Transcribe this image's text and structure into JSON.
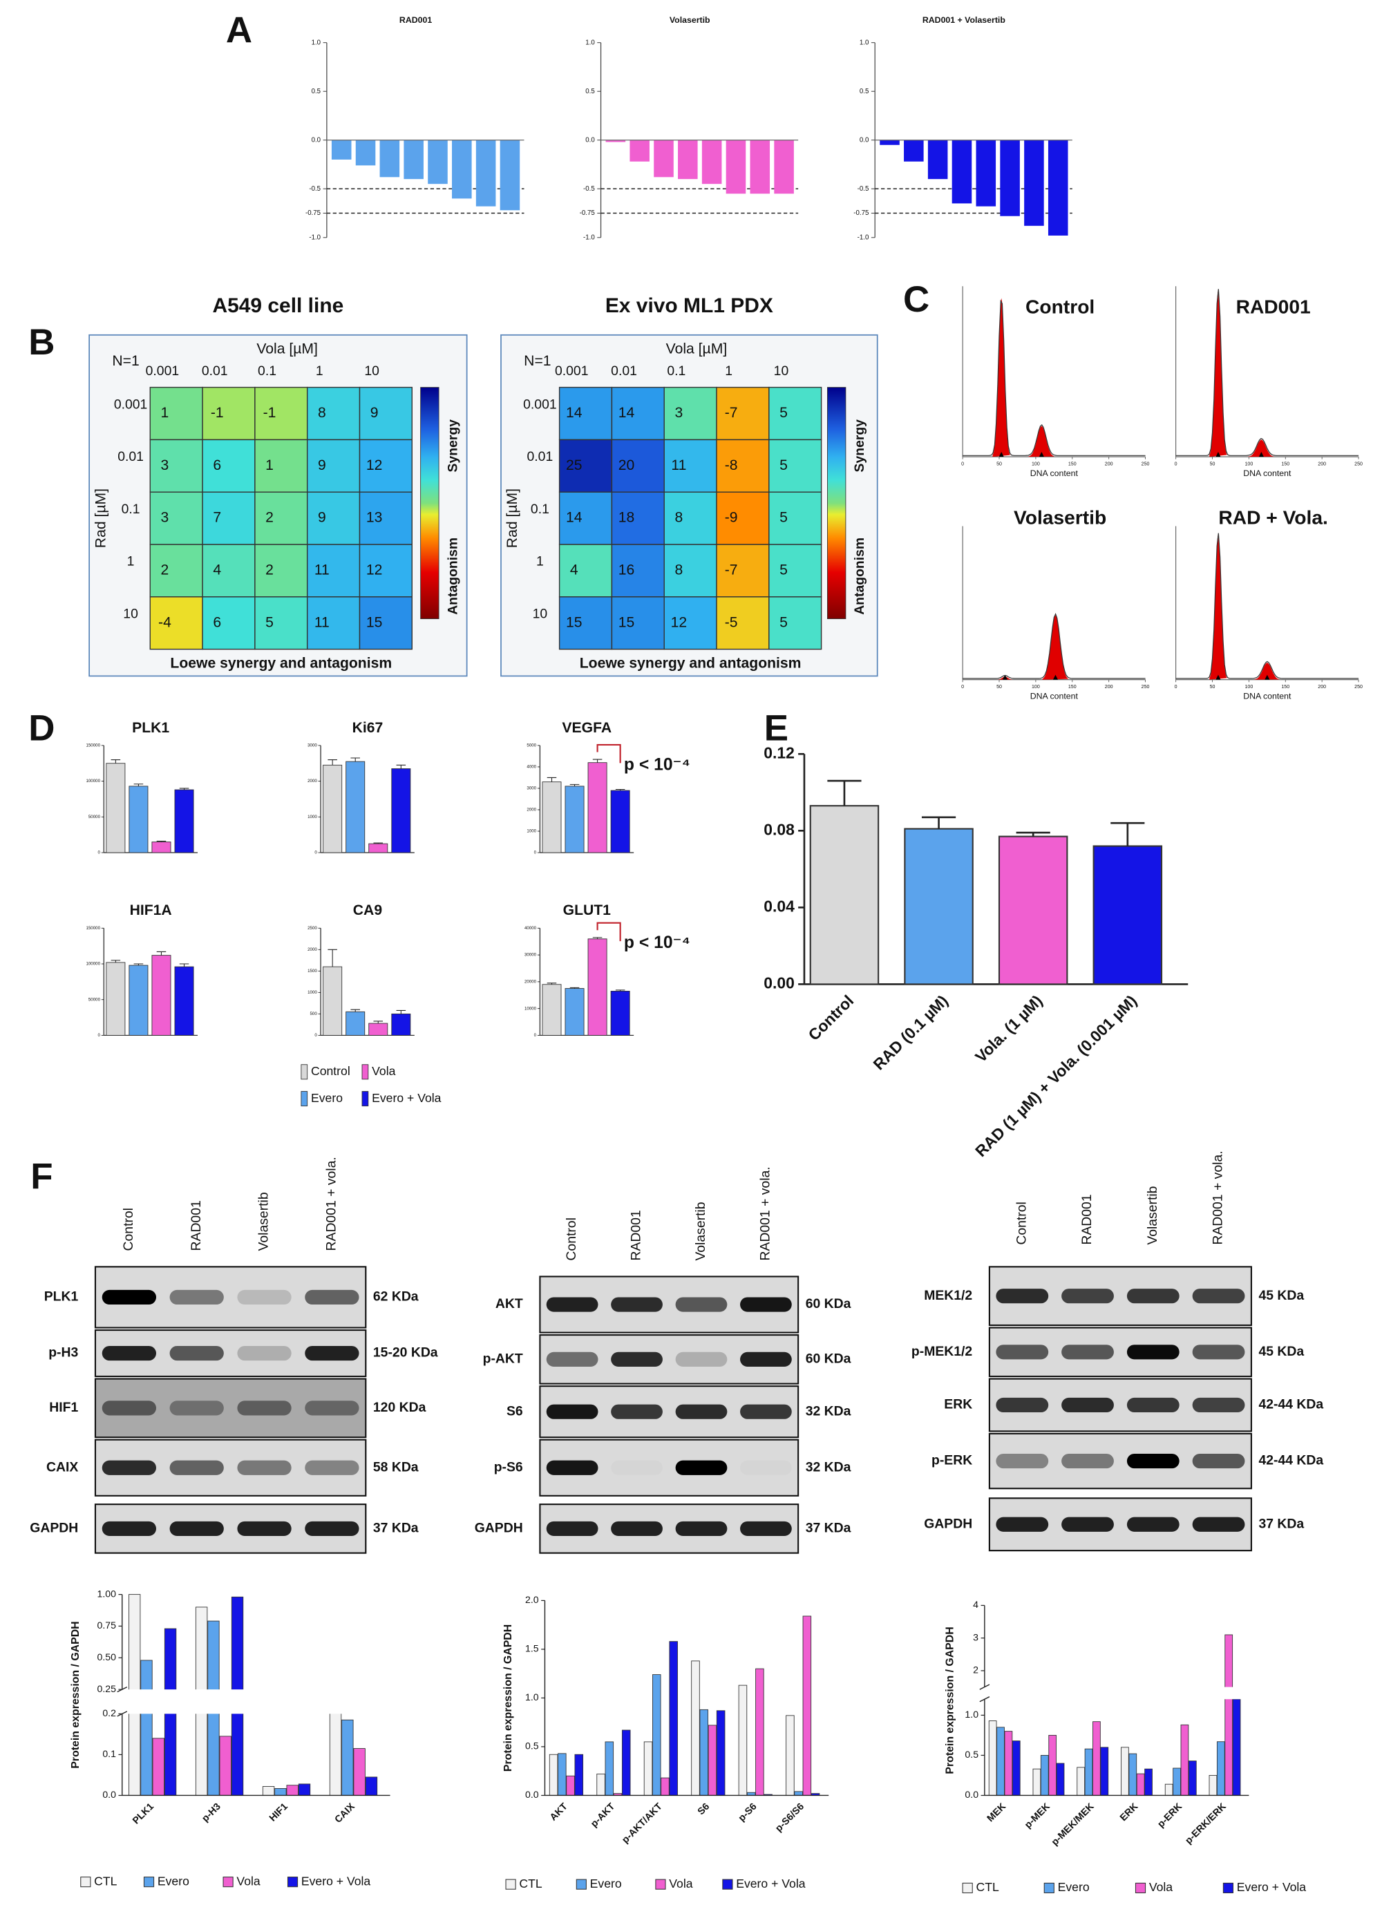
{
  "panel_labels": [
    "A",
    "B",
    "C",
    "D",
    "E",
    "F"
  ],
  "panel_d_legend": {
    "names": [
      "Control",
      "Evero",
      "Vola",
      "Evero + Vola"
    ],
    "colors": [
      "#d9d9d9",
      "#5ba3ec",
      "#f05fd0",
      "#1414e6"
    ]
  },
  "chart_data": [
    {
      "type": "waterfall",
      "title": "RAD001",
      "values": [
        -0.2,
        -0.26,
        -0.38,
        -0.4,
        -0.45,
        -0.6,
        -0.68,
        -0.72
      ],
      "color": "#5ba3ec",
      "ylim": [
        -1,
        1
      ],
      "yticks": [
        {
          "value": 1,
          "label": "1.0"
        },
        0.5,
        {
          "value": 0,
          "label": "0.0"
        },
        -0.5,
        -0.75,
        {
          "value": -1,
          "label": "-1.0"
        }
      ],
      "dashed_lines": [
        -0.5,
        -0.75
      ]
    },
    {
      "type": "waterfall",
      "title": "Volasertib",
      "values": [
        -0.02,
        -0.22,
        -0.38,
        -0.4,
        -0.45,
        -0.55,
        -0.55,
        -0.55
      ],
      "color": "#f05fd0",
      "ylim": [
        -1,
        1
      ],
      "yticks": [
        {
          "value": 1,
          "label": "1.0"
        },
        0.5,
        {
          "value": 0,
          "label": "0.0"
        },
        -0.5,
        -0.75,
        {
          "value": -1,
          "label": "-1.0"
        }
      ],
      "dashed_lines": [
        -0.5,
        -0.75
      ]
    },
    {
      "type": "waterfall",
      "title": "RAD001 + Volasertib",
      "values": [
        -0.05,
        -0.22,
        -0.4,
        -0.65,
        -0.68,
        -0.78,
        -0.88,
        -0.98
      ],
      "color": "#1414e6",
      "ylim": [
        -1,
        1
      ],
      "yticks": [
        {
          "value": 1,
          "label": "1.0"
        },
        0.5,
        {
          "value": 0,
          "label": "0.0"
        },
        -0.5,
        -0.75,
        {
          "value": -1,
          "label": "-1.0"
        }
      ],
      "dashed_lines": [
        -0.5,
        -0.75
      ]
    },
    {
      "type": "heatmap",
      "title": "A549 cell line",
      "note": "N=1",
      "x_label": "Vola [µM]",
      "y_label": "Rad [µM]",
      "x_categories": [
        "0.001",
        "0.01",
        "0.1",
        "1",
        "10"
      ],
      "y_categories": [
        "0.001",
        "0.01",
        "0.1",
        "1",
        "10"
      ],
      "values": [
        [
          1,
          -1,
          -1,
          8,
          9
        ],
        [
          3,
          6,
          1,
          9,
          12
        ],
        [
          3,
          7,
          2,
          9,
          13
        ],
        [
          2,
          4,
          2,
          11,
          12
        ],
        [
          -4,
          6,
          5,
          11,
          15
        ]
      ],
      "colorbar_labels": [
        "Synergy",
        "Antagonism"
      ],
      "footer": "Loewe synergy and antagonism"
    },
    {
      "type": "heatmap",
      "title": "Ex vivo ML1 PDX",
      "note": "N=1",
      "x_label": "Vola [µM]",
      "y_label": "Rad [µM]",
      "x_categories": [
        "0.001",
        "0.01",
        "0.1",
        "1",
        "10"
      ],
      "y_categories": [
        "0.001",
        "0.01",
        "0.1",
        "1",
        "10"
      ],
      "values": [
        [
          14,
          14,
          3,
          -7,
          5
        ],
        [
          25,
          20,
          11,
          -8,
          5
        ],
        [
          14,
          18,
          8,
          -9,
          5
        ],
        [
          4,
          16,
          8,
          -7,
          5
        ],
        [
          15,
          15,
          12,
          -5,
          5
        ]
      ],
      "colorbar_labels": [
        "Synergy",
        "Antagonism"
      ],
      "footer": "Loewe synergy and antagonism"
    },
    {
      "type": "dna-histogram",
      "title": "Control",
      "x_label": "DNA content",
      "x": [
        53,
        108
      ],
      "values": [
        0.93,
        0.18
      ],
      "xlim": [
        0,
        250
      ],
      "xticks": [
        0,
        50,
        100,
        150,
        200,
        250
      ],
      "color": "#e00000"
    },
    {
      "type": "dna-histogram",
      "title": "RAD001",
      "x_label": "DNA content",
      "x": [
        58,
        117
      ],
      "values": [
        0.98,
        0.1
      ],
      "xlim": [
        0,
        250
      ],
      "xticks": [
        0,
        50,
        100,
        150,
        200,
        250
      ],
      "color": "#e00000"
    },
    {
      "type": "dna-histogram",
      "title": "Volasertib",
      "x_label": "DNA content",
      "x": [
        58,
        127
      ],
      "values": [
        0.02,
        0.42
      ],
      "xlim": [
        0,
        250
      ],
      "xticks": [
        0,
        50,
        100,
        150,
        200,
        250
      ],
      "color": "#e00000"
    },
    {
      "type": "dna-histogram",
      "title": "RAD + Vola.",
      "x_label": "DNA content",
      "x": [
        58,
        125
      ],
      "values": [
        0.95,
        0.11
      ],
      "xlim": [
        0,
        250
      ],
      "xticks": [
        0,
        50,
        100,
        150,
        200,
        250
      ],
      "color": "#e00000"
    },
    {
      "type": "bar-error",
      "title": "PLK1",
      "values": [
        125000,
        93000,
        15000,
        88000
      ],
      "errors": [
        5000,
        3000,
        1000,
        2000
      ],
      "ylim": [
        0,
        150000
      ],
      "yticks": [
        0,
        50000,
        100000,
        150000
      ]
    },
    {
      "type": "bar-error",
      "title": "Ki67",
      "values": [
        2450,
        2550,
        250,
        2350
      ],
      "errors": [
        150,
        100,
        20,
        100
      ],
      "ylim": [
        0,
        3000
      ],
      "yticks": [
        0,
        1000,
        2000,
        3000
      ]
    },
    {
      "type": "bar-error",
      "title": "VEGFA",
      "values": [
        3300,
        3100,
        4200,
        2900
      ],
      "errors": [
        200,
        80,
        150,
        50
      ],
      "ylim": [
        0,
        5000
      ],
      "yticks": [
        0,
        1000,
        2000,
        3000,
        4000,
        5000
      ],
      "annotation": "p < 10⁻⁴"
    },
    {
      "type": "bar-error",
      "title": "HIF1A",
      "values": [
        102000,
        98000,
        112000,
        96000
      ],
      "errors": [
        3000,
        2000,
        5000,
        4000
      ],
      "ylim": [
        0,
        150000
      ],
      "yticks": [
        0,
        50000,
        100000,
        150000
      ]
    },
    {
      "type": "bar-error",
      "title": "CA9",
      "values": [
        1600,
        550,
        280,
        500
      ],
      "errors": [
        400,
        50,
        50,
        80
      ],
      "ylim": [
        0,
        2500
      ],
      "yticks": [
        0,
        500,
        1000,
        1500,
        2000,
        2500
      ]
    },
    {
      "type": "bar-error",
      "title": "GLUT1",
      "values": [
        19000,
        17500,
        36000,
        16500
      ],
      "errors": [
        500,
        300,
        500,
        400
      ],
      "ylim": [
        0,
        40000
      ],
      "yticks": [
        0,
        10000,
        20000,
        30000,
        40000
      ],
      "annotation": "p < 10⁻⁴"
    },
    {
      "type": "bar-error",
      "categories": [
        "Control",
        "RAD (0.1 µM)",
        "Vola. (1 µM)",
        "RAD (1 µM) + Vola. (0.001 µM)"
      ],
      "values": [
        0.093,
        0.081,
        0.077,
        0.072
      ],
      "errors": [
        0.013,
        0.006,
        0.002,
        0.012
      ],
      "colors": [
        "#d9d9d9",
        "#5ba3ec",
        "#f05fd0",
        "#1414e6"
      ],
      "ylim": [
        0,
        0.12
      ],
      "yticks": [
        {
          "value": 0,
          "label": "0.00"
        },
        0.04,
        0.08,
        0.12
      ]
    },
    {
      "type": "grouped-bar",
      "y_label": "Protein expression / GAPDH",
      "categories": [
        "PLK1",
        "p-H3",
        "HIF1",
        "CAIX"
      ],
      "series": [
        {
          "name": "CTL",
          "color": "#f2f2f2",
          "values": [
            1.0,
            0.9,
            0.022,
            0.205
          ]
        },
        {
          "name": "Evero",
          "color": "#5ba3ec",
          "values": [
            0.48,
            0.79,
            0.017,
            0.185
          ]
        },
        {
          "name": "Vola",
          "color": "#f05fd0",
          "values": [
            0.14,
            0.145,
            0.025,
            0.115
          ]
        },
        {
          "name": "Evero + Vola",
          "color": "#1414e6",
          "values": [
            0.73,
            0.98,
            0.028,
            0.045
          ]
        }
      ],
      "ylim": [
        0,
        1
      ],
      "ybreak": [
        0.2,
        0.25
      ],
      "yticks": [
        {
          "value": 0,
          "label": "0.0"
        },
        0.1,
        0.2,
        0.25,
        {
          "value": 0.5,
          "label": "0.50"
        },
        0.75,
        {
          "value": 1,
          "label": "1.00"
        }
      ]
    },
    {
      "type": "grouped-bar",
      "y_label": "Protein expression / GAPDH",
      "categories": [
        "AKT",
        "p-AKT",
        "p-AKT/AKT",
        "S6",
        "p-S6",
        "p-S6/S6"
      ],
      "series": [
        {
          "name": "CTL",
          "color": "#f2f2f2",
          "values": [
            0.42,
            0.22,
            0.55,
            1.38,
            1.13,
            0.82
          ]
        },
        {
          "name": "Evero",
          "color": "#5ba3ec",
          "values": [
            0.43,
            0.55,
            1.24,
            0.88,
            0.03,
            0.04
          ]
        },
        {
          "name": "Vola",
          "color": "#f05fd0",
          "values": [
            0.2,
            0.02,
            0.18,
            0.72,
            1.3,
            1.84
          ]
        },
        {
          "name": "Evero + Vola",
          "color": "#1414e6",
          "values": [
            0.42,
            0.67,
            1.58,
            0.87,
            0.01,
            0.02
          ]
        }
      ],
      "ylim": [
        0,
        2
      ],
      "yticks": [
        {
          "value": 0,
          "label": "0.0"
        },
        0.5,
        {
          "value": 1,
          "label": "1.0"
        },
        1.5,
        {
          "value": 2,
          "label": "2.0"
        }
      ]
    },
    {
      "type": "grouped-bar",
      "y_label": "Protein expression / GAPDH",
      "categories": [
        "MEK",
        "p-MEK",
        "p-MEK/MEK",
        "ERK",
        "p-ERK",
        "p-ERK/ERK"
      ],
      "series": [
        {
          "name": "CTL",
          "color": "#f2f2f2",
          "values": [
            0.93,
            0.33,
            0.35,
            0.6,
            0.14,
            0.25
          ]
        },
        {
          "name": "Evero",
          "color": "#5ba3ec",
          "values": [
            0.85,
            0.5,
            0.58,
            0.52,
            0.34,
            0.67
          ]
        },
        {
          "name": "Vola",
          "color": "#f05fd0",
          "values": [
            0.8,
            0.75,
            0.92,
            0.27,
            0.88,
            3.1
          ]
        },
        {
          "name": "Evero + Vola",
          "color": "#1414e6",
          "values": [
            0.68,
            0.4,
            0.6,
            0.33,
            0.43,
            1.2
          ]
        }
      ],
      "ylim": [
        0,
        4
      ],
      "ybreak": [
        1.2,
        1.5
      ],
      "yticks": [
        {
          "value": 0,
          "label": "0.0"
        },
        0.5,
        {
          "value": 1,
          "label": "1.0"
        },
        2,
        3,
        4
      ]
    }
  ],
  "blots": [
    {
      "lanes": [
        "Control",
        "RAD001",
        "Volasertib",
        "RAD001 + vola."
      ],
      "rows": [
        {
          "label": "PLK1",
          "size": "62 KDa",
          "intensity": [
            1.0,
            0.45,
            0.15,
            0.55
          ]
        },
        {
          "label": "p-H3",
          "size": "15-20 KDa",
          "intensity": [
            0.85,
            0.6,
            0.2,
            0.85
          ]
        },
        {
          "label": "HIF1",
          "size": "120 KDa",
          "intensity": [
            0.5,
            0.35,
            0.45,
            0.4
          ]
        },
        {
          "label": "CAIX",
          "size": "58 KDa",
          "intensity": [
            0.8,
            0.55,
            0.45,
            0.4
          ]
        },
        {
          "label": "GAPDH",
          "size": "37 KDa",
          "intensity": [
            0.85,
            0.85,
            0.85,
            0.85
          ]
        }
      ]
    },
    {
      "lanes": [
        "Control",
        "RAD001",
        "Volasertib",
        "RAD001 + vola."
      ],
      "rows": [
        {
          "label": "AKT",
          "size": "60 KDa",
          "intensity": [
            0.85,
            0.8,
            0.6,
            0.9
          ]
        },
        {
          "label": "p-AKT",
          "size": "60 KDa",
          "intensity": [
            0.5,
            0.8,
            0.2,
            0.85
          ]
        },
        {
          "label": "S6",
          "size": "32 KDa",
          "intensity": [
            0.9,
            0.75,
            0.8,
            0.75
          ]
        },
        {
          "label": "p-S6",
          "size": "32 KDa",
          "intensity": [
            0.9,
            0.02,
            1.0,
            0.02
          ]
        },
        {
          "label": "GAPDH",
          "size": "37 KDa",
          "intensity": [
            0.85,
            0.85,
            0.85,
            0.85
          ]
        }
      ]
    },
    {
      "lanes": [
        "Control",
        "RAD001",
        "Volasertib",
        "RAD001 + vola."
      ],
      "rows": [
        {
          "label": "MEK1/2",
          "size": "45 KDa",
          "intensity": [
            0.8,
            0.7,
            0.75,
            0.7
          ]
        },
        {
          "label": "p-MEK1/2",
          "size": "45 KDa",
          "intensity": [
            0.6,
            0.6,
            0.95,
            0.6
          ]
        },
        {
          "label": "ERK",
          "size": "42-44 KDa",
          "intensity": [
            0.75,
            0.8,
            0.75,
            0.7
          ]
        },
        {
          "label": "p-ERK",
          "size": "42-44 KDa",
          "intensity": [
            0.4,
            0.45,
            1.0,
            0.6
          ]
        },
        {
          "label": "GAPDH",
          "size": "37 KDa",
          "intensity": [
            0.85,
            0.85,
            0.85,
            0.85
          ]
        }
      ]
    }
  ]
}
